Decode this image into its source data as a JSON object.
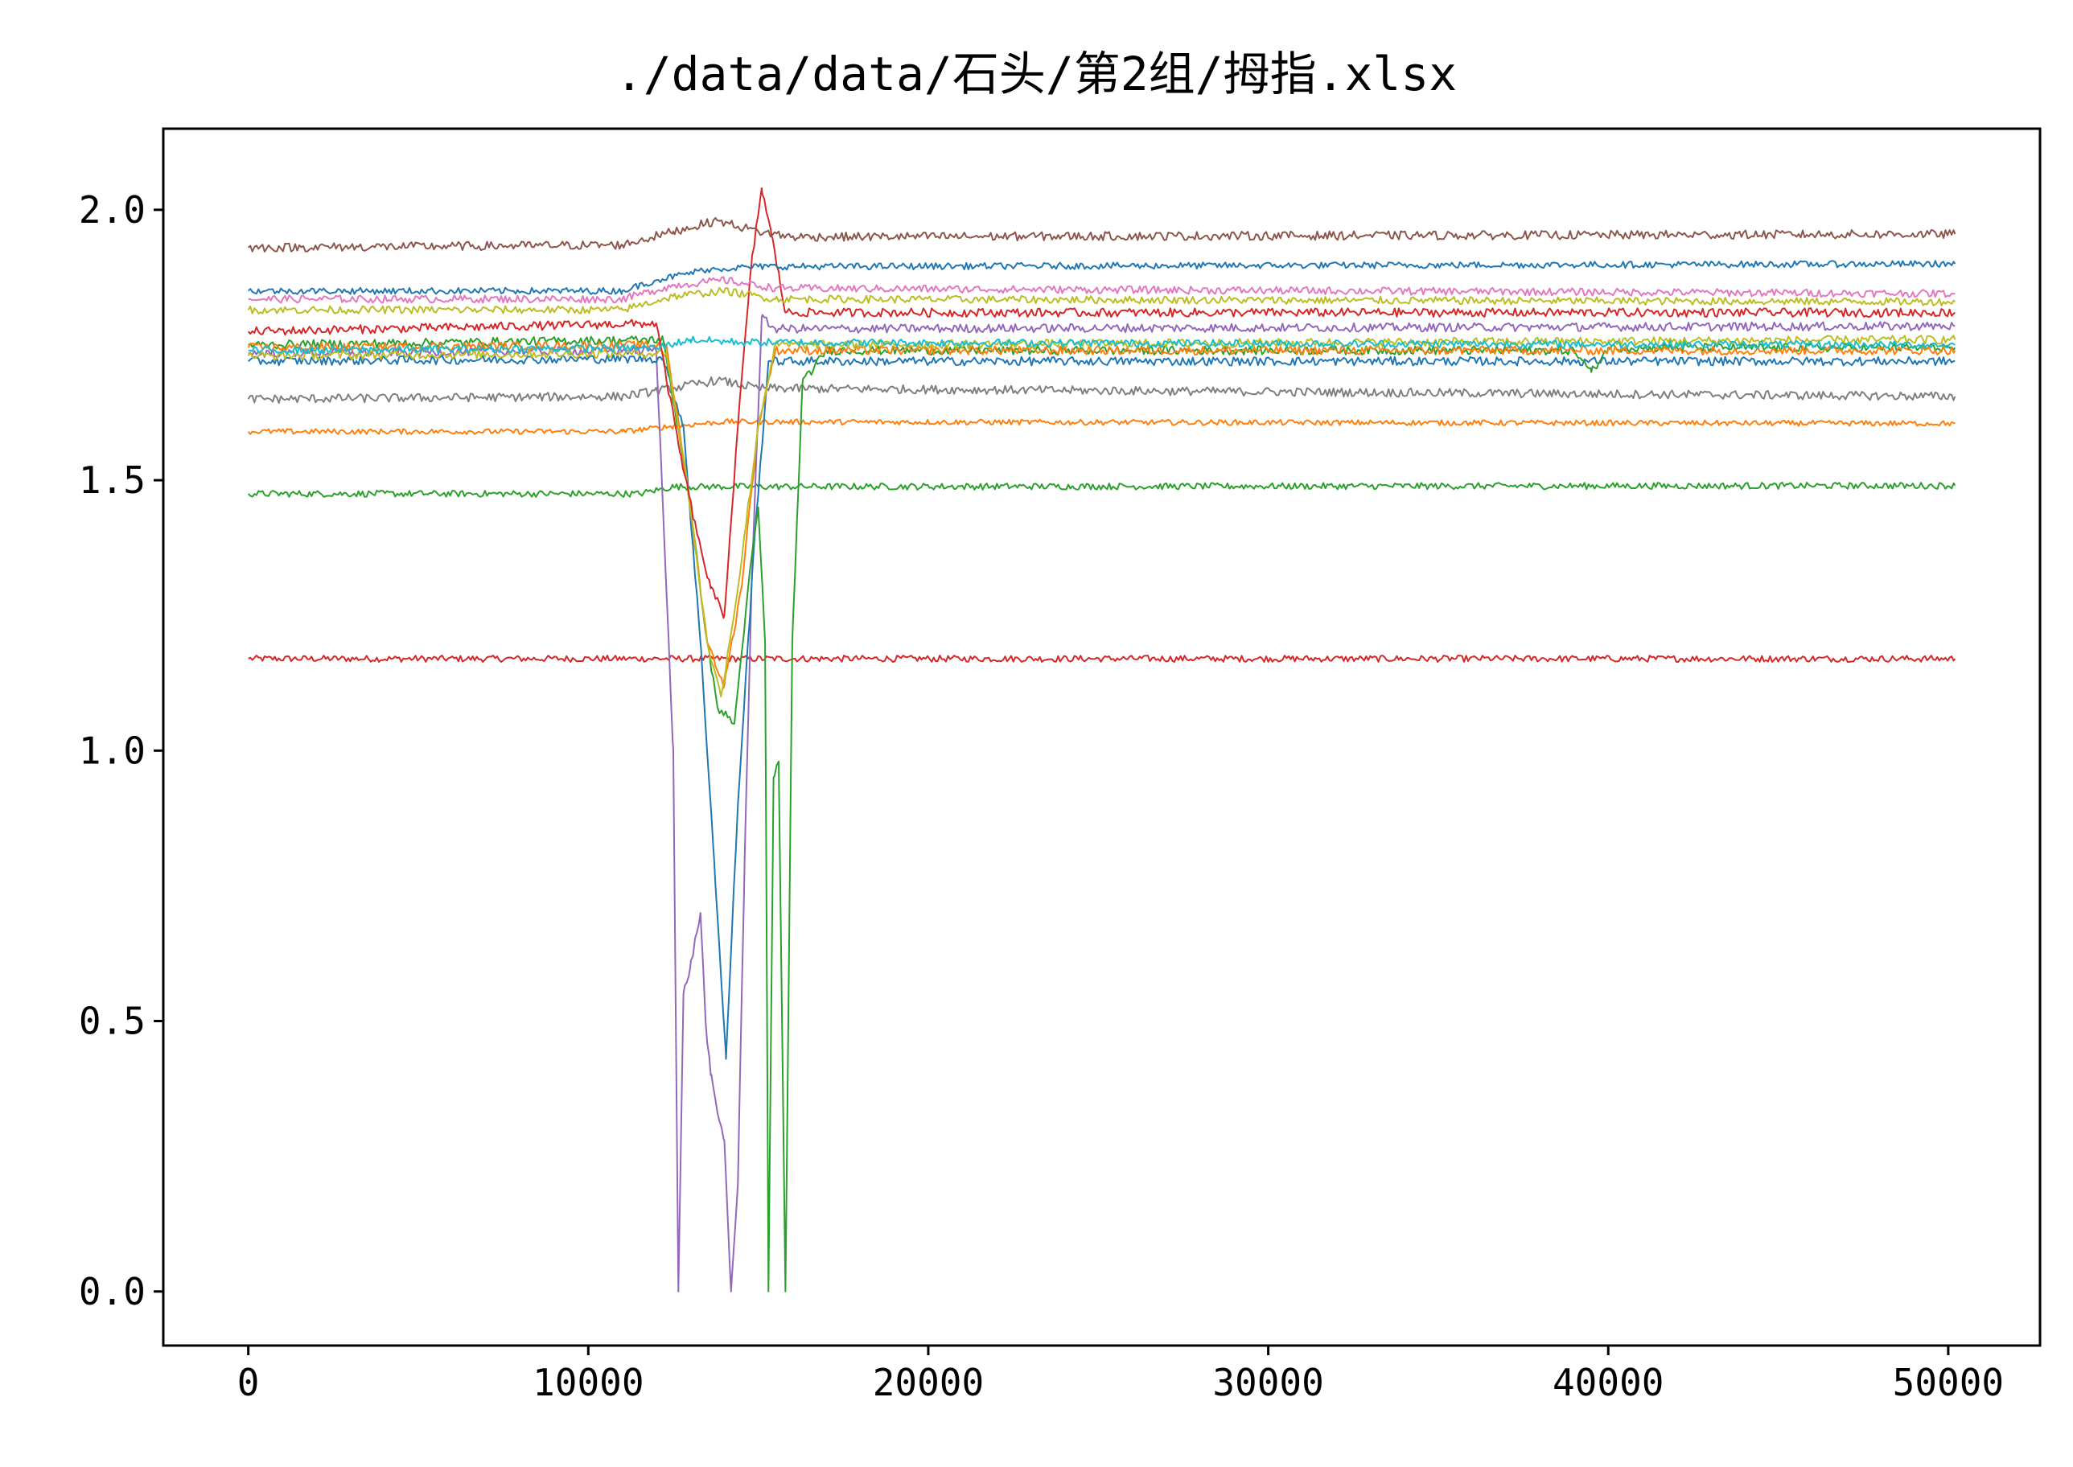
{
  "chart_data": {
    "type": "line",
    "title": "./data/data/石头/第2组/拇指.xlsx",
    "xlabel": "",
    "ylabel": "",
    "xlim": [
      -2500,
      52700
    ],
    "ylim": [
      -0.1,
      2.15
    ],
    "xticks": [
      0,
      10000,
      20000,
      30000,
      40000,
      50000
    ],
    "xtick_labels": [
      "0",
      "10000",
      "20000",
      "30000",
      "40000",
      "50000"
    ],
    "yticks": [
      0.0,
      0.5,
      1.0,
      1.5,
      2.0
    ],
    "ytick_labels": [
      "0.0",
      "0.5",
      "1.0",
      "1.5",
      "2.0"
    ],
    "grid": false,
    "legend": "none",
    "series": [
      {
        "color": "#d62728",
        "noise": 0.006,
        "points": [
          [
            0,
            1.17
          ],
          [
            50200,
            1.17
          ]
        ]
      },
      {
        "color": "#2ca02c",
        "noise": 0.006,
        "points": [
          [
            0,
            1.475
          ],
          [
            11500,
            1.475
          ],
          [
            12500,
            1.488
          ],
          [
            50200,
            1.49
          ]
        ]
      },
      {
        "color": "#ff7f0e",
        "noise": 0.005,
        "points": [
          [
            0,
            1.59
          ],
          [
            11000,
            1.59
          ],
          [
            12500,
            1.6
          ],
          [
            14000,
            1.608
          ],
          [
            50200,
            1.605
          ]
        ]
      },
      {
        "color": "#7f7f7f",
        "noise": 0.008,
        "points": [
          [
            0,
            1.65
          ],
          [
            11000,
            1.655
          ],
          [
            12500,
            1.67
          ],
          [
            13800,
            1.685
          ],
          [
            15000,
            1.67
          ],
          [
            50200,
            1.655
          ]
        ]
      },
      {
        "color": "#9467bd",
        "noise": 0.008,
        "points": [
          [
            0,
            1.735
          ],
          [
            12000,
            1.74
          ],
          [
            12500,
            1.0
          ],
          [
            12650,
            0.0
          ],
          [
            12800,
            0.55
          ],
          [
            13000,
            0.6
          ],
          [
            13300,
            0.7
          ],
          [
            13450,
            0.5
          ],
          [
            13600,
            0.4
          ],
          [
            13800,
            0.33
          ],
          [
            14000,
            0.28
          ],
          [
            14200,
            0.0
          ],
          [
            14400,
            0.2
          ],
          [
            14600,
            0.8
          ],
          [
            14800,
            1.3
          ],
          [
            15100,
            1.8
          ],
          [
            15500,
            1.78
          ],
          [
            16500,
            1.78
          ],
          [
            50200,
            1.785
          ]
        ]
      },
      {
        "color": "#1f77b4",
        "noise": 0.008,
        "points": [
          [
            0,
            1.72
          ],
          [
            12200,
            1.725
          ],
          [
            12800,
            1.6
          ],
          [
            13300,
            1.2
          ],
          [
            13700,
            0.8
          ],
          [
            14050,
            0.43
          ],
          [
            14400,
            0.9
          ],
          [
            14900,
            1.4
          ],
          [
            15300,
            1.72
          ],
          [
            50200,
            1.72
          ]
        ]
      },
      {
        "color": "#2ca02c",
        "noise": 0.008,
        "points": [
          [
            0,
            1.75
          ],
          [
            12200,
            1.76
          ],
          [
            12900,
            1.5
          ],
          [
            13500,
            1.2
          ],
          [
            13800,
            1.08
          ],
          [
            14300,
            1.05
          ],
          [
            14700,
            1.3
          ],
          [
            15000,
            1.45
          ],
          [
            15200,
            1.2
          ],
          [
            15300,
            0.0
          ],
          [
            15450,
            0.95
          ],
          [
            15600,
            0.98
          ],
          [
            15800,
            0.0
          ],
          [
            16000,
            1.2
          ],
          [
            16300,
            1.68
          ],
          [
            17000,
            1.74
          ],
          [
            39000,
            1.74
          ],
          [
            39500,
            1.7
          ],
          [
            40000,
            1.745
          ],
          [
            50200,
            1.745
          ]
        ]
      },
      {
        "color": "#ff7f0e",
        "noise": 0.008,
        "points": [
          [
            0,
            1.745
          ],
          [
            12300,
            1.75
          ],
          [
            12900,
            1.5
          ],
          [
            13500,
            1.2
          ],
          [
            14000,
            1.12
          ],
          [
            14500,
            1.3
          ],
          [
            15000,
            1.6
          ],
          [
            15500,
            1.74
          ],
          [
            50200,
            1.74
          ]
        ]
      },
      {
        "color": "#bcbd22",
        "noise": 0.008,
        "points": [
          [
            0,
            1.73
          ],
          [
            12300,
            1.735
          ],
          [
            12900,
            1.5
          ],
          [
            13500,
            1.2
          ],
          [
            13900,
            1.1
          ],
          [
            14400,
            1.3
          ],
          [
            15000,
            1.6
          ],
          [
            15500,
            1.75
          ],
          [
            50200,
            1.76
          ]
        ]
      },
      {
        "color": "#d62728",
        "noise": 0.008,
        "points": [
          [
            0,
            1.775
          ],
          [
            12000,
            1.79
          ],
          [
            12700,
            1.55
          ],
          [
            13200,
            1.4
          ],
          [
            13600,
            1.3
          ],
          [
            14000,
            1.25
          ],
          [
            14400,
            1.6
          ],
          [
            14800,
            1.9
          ],
          [
            15100,
            2.04
          ],
          [
            15400,
            1.95
          ],
          [
            15800,
            1.81
          ],
          [
            50200,
            1.81
          ]
        ]
      },
      {
        "color": "#e377c2",
        "noise": 0.007,
        "points": [
          [
            0,
            1.835
          ],
          [
            11000,
            1.835
          ],
          [
            12500,
            1.86
          ],
          [
            14000,
            1.87
          ],
          [
            15500,
            1.855
          ],
          [
            50200,
            1.845
          ]
        ]
      },
      {
        "color": "#bcbd22",
        "noise": 0.007,
        "points": [
          [
            0,
            1.815
          ],
          [
            11000,
            1.815
          ],
          [
            12500,
            1.84
          ],
          [
            14000,
            1.85
          ],
          [
            15500,
            1.835
          ],
          [
            50200,
            1.83
          ]
        ]
      },
      {
        "color": "#1f77b4",
        "noise": 0.006,
        "points": [
          [
            0,
            1.85
          ],
          [
            11000,
            1.85
          ],
          [
            12000,
            1.87
          ],
          [
            13500,
            1.89
          ],
          [
            15000,
            1.895
          ],
          [
            50200,
            1.9
          ]
        ]
      },
      {
        "color": "#17becf",
        "noise": 0.007,
        "points": [
          [
            0,
            1.74
          ],
          [
            12000,
            1.745
          ],
          [
            13000,
            1.76
          ],
          [
            14500,
            1.755
          ],
          [
            50200,
            1.75
          ]
        ]
      },
      {
        "color": "#8c564b",
        "noise": 0.008,
        "points": [
          [
            0,
            1.93
          ],
          [
            11000,
            1.935
          ],
          [
            12500,
            1.96
          ],
          [
            13800,
            1.98
          ],
          [
            15000,
            1.96
          ],
          [
            16000,
            1.95
          ],
          [
            50200,
            1.955
          ]
        ]
      }
    ]
  }
}
